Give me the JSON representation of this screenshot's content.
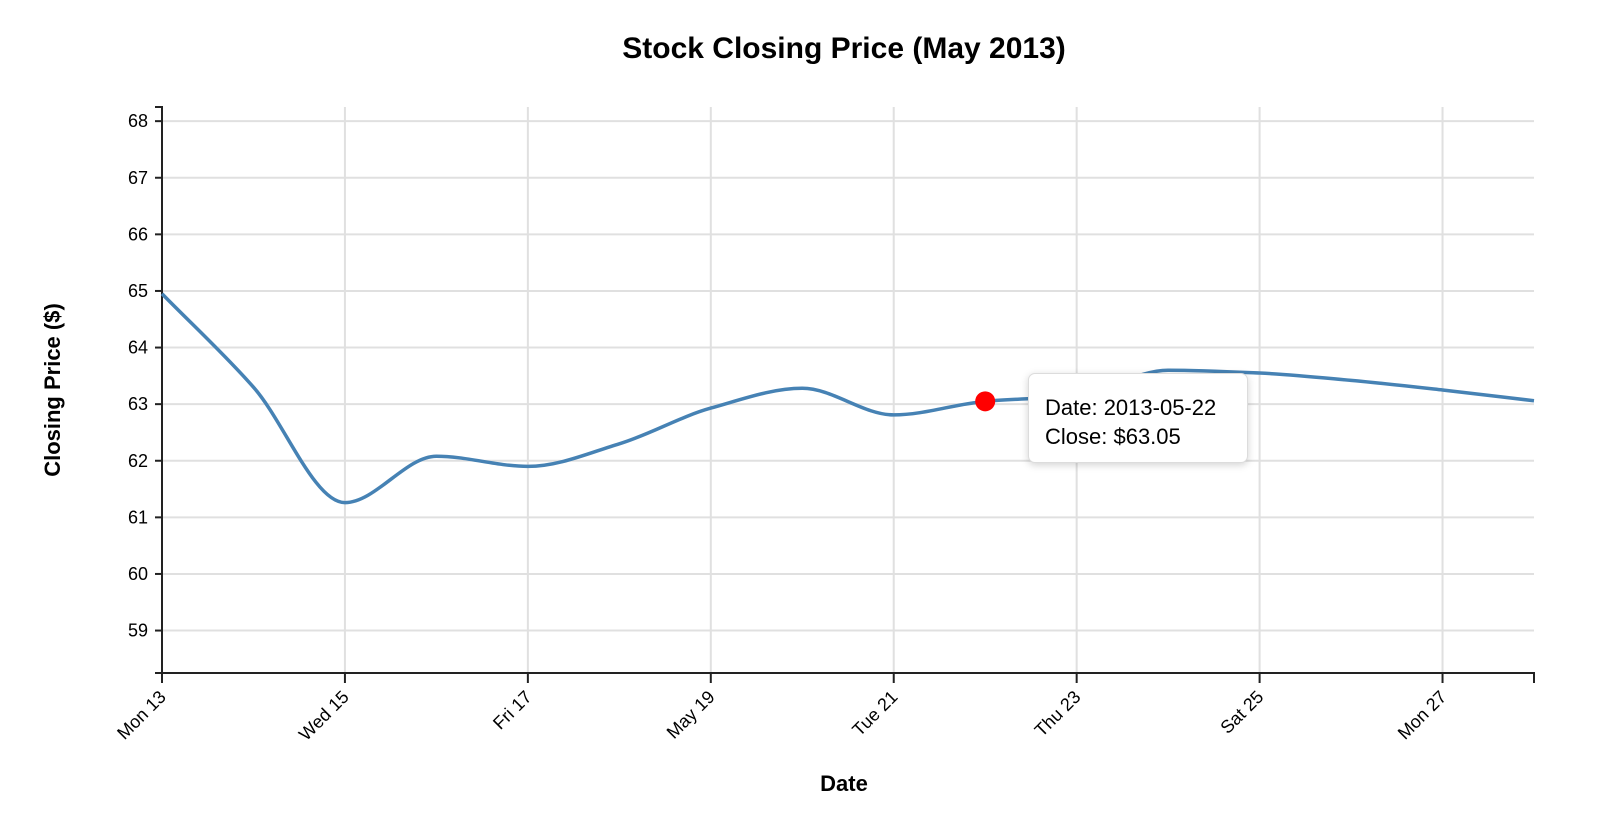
{
  "chart_data": {
    "type": "line",
    "title": "Stock Closing Price (May 2013)",
    "xlabel": "Date",
    "ylabel": "Closing Price ($)",
    "x_domain": [
      "2013-05-13",
      "2013-05-28"
    ],
    "ylim": [
      58.25,
      68.25
    ],
    "y_ticks": [
      59,
      60,
      61,
      62,
      63,
      64,
      65,
      66,
      67,
      68
    ],
    "x_ticks": [
      {
        "date": "2013-05-13",
        "label": "Mon 13"
      },
      {
        "date": "2013-05-15",
        "label": "Wed 15"
      },
      {
        "date": "2013-05-17",
        "label": "Fri 17"
      },
      {
        "date": "2013-05-19",
        "label": "May 19"
      },
      {
        "date": "2013-05-21",
        "label": "Tue 21"
      },
      {
        "date": "2013-05-23",
        "label": "Thu 23"
      },
      {
        "date": "2013-05-25",
        "label": "Sat 25"
      },
      {
        "date": "2013-05-27",
        "label": "Mon 27"
      }
    ],
    "grid": true,
    "line_color": "#4682b4",
    "series": [
      {
        "points": [
          {
            "date": "2013-05-13",
            "close": 64.95
          },
          {
            "date": "2013-05-14",
            "close": 63.3
          },
          {
            "date": "2013-05-15",
            "close": 61.26
          },
          {
            "date": "2013-05-16",
            "close": 62.08
          },
          {
            "date": "2013-05-17",
            "close": 61.9
          },
          {
            "date": "2013-05-18",
            "close": 62.3
          },
          {
            "date": "2013-05-19",
            "close": 62.93
          },
          {
            "date": "2013-05-20",
            "close": 63.28
          },
          {
            "date": "2013-05-21",
            "close": 62.81
          },
          {
            "date": "2013-05-22",
            "close": 63.05
          },
          {
            "date": "2013-05-23",
            "close": 63.15
          },
          {
            "date": "2013-05-24",
            "close": 63.6
          },
          {
            "date": "2013-05-25",
            "close": 63.55
          },
          {
            "date": "2013-05-26",
            "close": 63.42
          },
          {
            "date": "2013-05-27",
            "close": 63.25
          },
          {
            "date": "2013-05-28",
            "close": 63.06
          }
        ]
      }
    ],
    "highlight": {
      "date": "2013-05-22",
      "close": 63.05,
      "color": "#ff0000",
      "tooltip_date": "Date: 2013-05-22",
      "tooltip_close": "Close: $63.05"
    }
  }
}
